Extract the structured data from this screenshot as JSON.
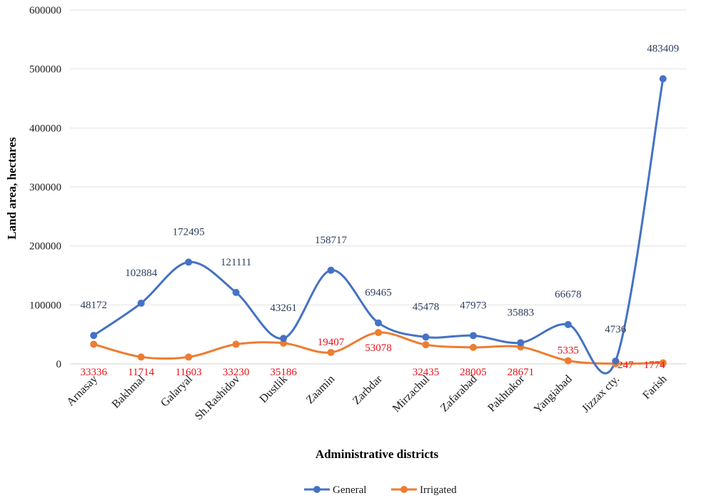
{
  "chart_data": {
    "type": "line",
    "smooth": true,
    "title": "",
    "xlabel": "Administrative  districts",
    "ylabel": "Land area, hectares",
    "ylim": [
      0,
      600000
    ],
    "yticks": [
      "600000",
      "500000",
      "400000",
      "300000",
      "200000",
      "100000",
      "0"
    ],
    "grid": true,
    "legend_position": "bottom",
    "categories": [
      "Arnasay",
      "Bakhmal",
      "Galaryal",
      "Sh.Rashidov",
      "Dustlik",
      "Zaamin",
      "Zarbdar",
      "Mirzachul",
      "Zafarabad",
      "Pakhtakor",
      "Yangiabad",
      "Jizzax cty.",
      "Farish"
    ],
    "series": [
      {
        "name": "General",
        "color": "#4472c4",
        "label_color": "#2e3e5e",
        "values": [
          48172,
          102884,
          172495,
          121111,
          43261,
          158717,
          69465,
          45478,
          47973,
          35883,
          66678,
          4736,
          483409
        ],
        "labels": [
          "48172",
          "102884",
          "172495",
          "121111",
          "43261",
          "158717",
          "69465",
          "45478",
          "47973",
          "35883",
          "66678",
          "4736",
          "483409"
        ]
      },
      {
        "name": "Irrigated",
        "color": "#ed7d31",
        "label_color": "#e8101a",
        "values": [
          33336,
          11714,
          11603,
          33230,
          35186,
          19407,
          53078,
          32435,
          28005,
          28671,
          5335,
          247,
          1774
        ],
        "labels": [
          "33336",
          "11714",
          "11603",
          "33230",
          "35186",
          "19407",
          "53078",
          "32435",
          "28005",
          "28671",
          "5335",
          "247",
          "1774"
        ]
      }
    ]
  }
}
